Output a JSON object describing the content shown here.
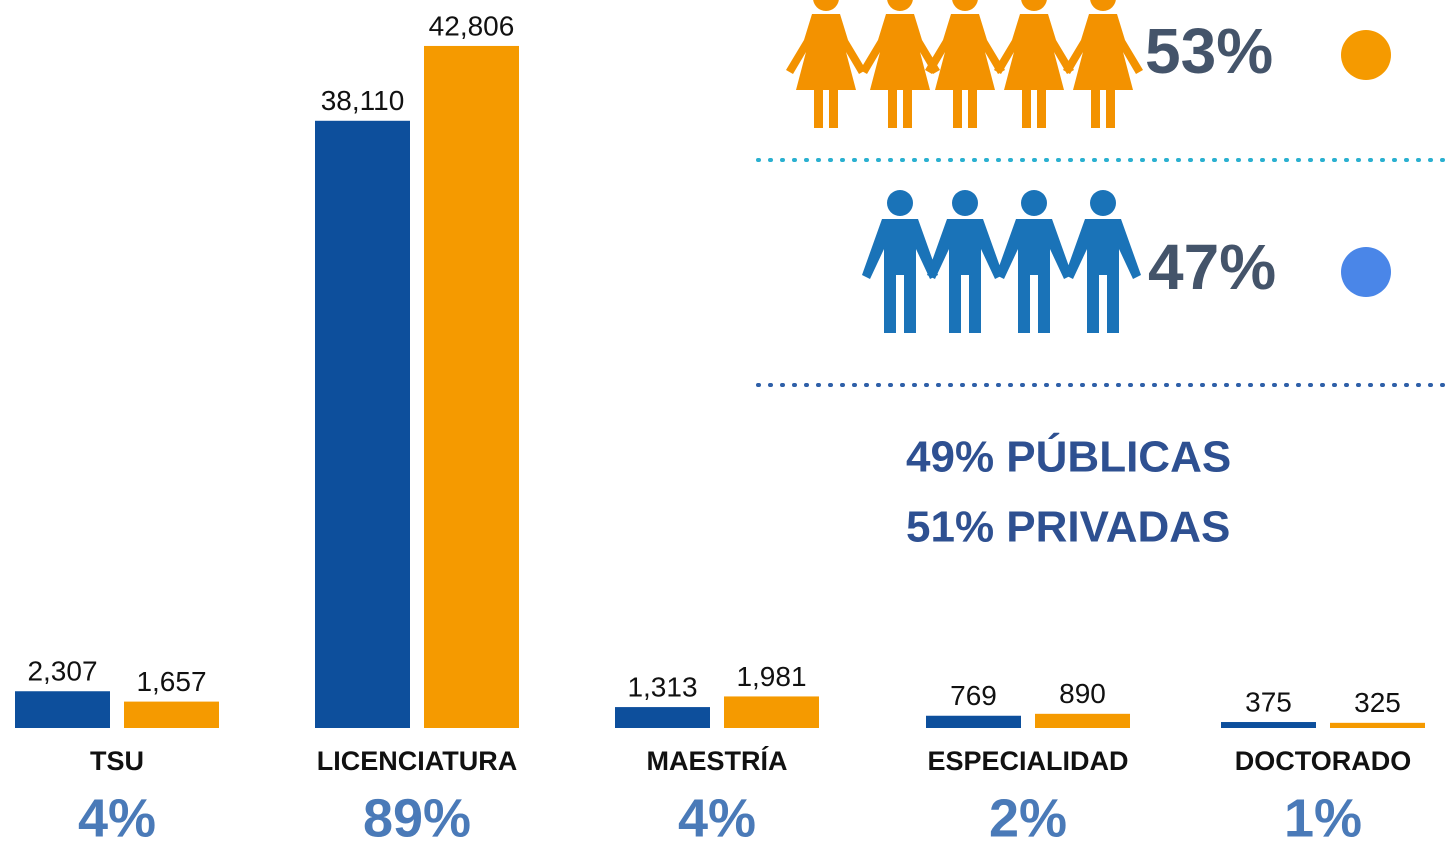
{
  "chart_data": {
    "type": "bar",
    "categories": [
      "TSU",
      "LICENCIATURA",
      "MAESTRÍA",
      "ESPECIALIDAD",
      "DOCTORADO"
    ],
    "series": [
      {
        "color": "#0d4f9c",
        "values": [
          2307,
          38110,
          1313,
          769,
          375
        ],
        "value_labels": [
          "2,307",
          "38,110",
          "1,313",
          "769",
          "375"
        ]
      },
      {
        "color": "#f59a00",
        "values": [
          1657,
          42806,
          1981,
          890,
          325
        ],
        "value_labels": [
          "1,657",
          "42,806",
          "1,981",
          "890",
          "325"
        ]
      }
    ],
    "share_labels": [
      "4%",
      "89%",
      "4%",
      "2%",
      "1%"
    ],
    "ylim": [
      0,
      45000
    ],
    "women": {
      "label": "53%",
      "color": "#f59a00"
    },
    "men": {
      "label": "47%",
      "color": "#4a86e8"
    },
    "institutions": [
      "49% PÚBLICAS",
      "51% PRIVADAS"
    ]
  }
}
